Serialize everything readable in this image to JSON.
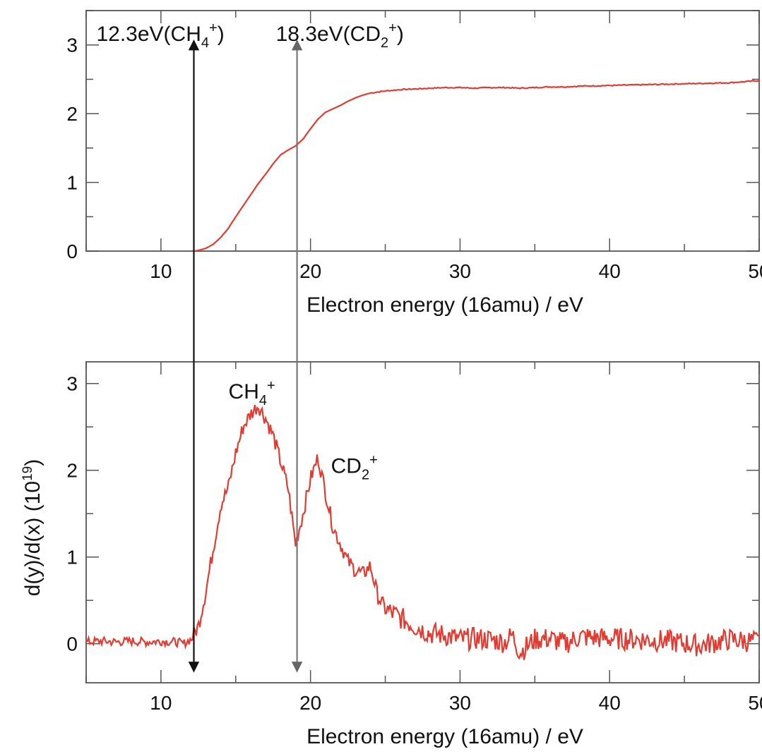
{
  "figure": {
    "colors": {
      "curve": "#e03c31",
      "axis": "#555555",
      "arrow_dark": "#111111",
      "arrow_gray": "#777777",
      "text": "#111111",
      "background": "#ffffff"
    }
  },
  "chart_data": [
    {
      "type": "line",
      "title": "",
      "xlabel": "Electron energy (16amu) / eV",
      "ylabel": "",
      "xlim": [
        5,
        50
      ],
      "ylim": [
        0,
        3.5
      ],
      "x_ticks": [
        10,
        20,
        30,
        40,
        50
      ],
      "x_tick_labels": [
        "10",
        "20",
        "30",
        "40",
        "50"
      ],
      "y_ticks": [
        0,
        1,
        2,
        3
      ],
      "y_tick_labels": [
        "0",
        "1",
        "2",
        "3"
      ],
      "grid": false,
      "series": [
        {
          "x": [
            12.2,
            12.5,
            13,
            13.5,
            14,
            14.5,
            15,
            15.5,
            16,
            16.5,
            17,
            17.5,
            18,
            18.5,
            19,
            19.5,
            20,
            20.5,
            21,
            21.5,
            22,
            22.5,
            23,
            23.5,
            24,
            25,
            26,
            27,
            28,
            29,
            30,
            31,
            32,
            33,
            34,
            35,
            36,
            37,
            38,
            40,
            42,
            44,
            46,
            48,
            50
          ],
          "y": [
            0,
            0.01,
            0.04,
            0.1,
            0.2,
            0.33,
            0.5,
            0.66,
            0.82,
            0.98,
            1.12,
            1.27,
            1.4,
            1.47,
            1.53,
            1.63,
            1.78,
            1.92,
            2.02,
            2.07,
            2.12,
            2.18,
            2.23,
            2.27,
            2.3,
            2.33,
            2.35,
            2.36,
            2.37,
            2.38,
            2.38,
            2.37,
            2.38,
            2.38,
            2.37,
            2.38,
            2.39,
            2.39,
            2.4,
            2.41,
            2.42,
            2.43,
            2.44,
            2.45,
            2.48
          ]
        }
      ],
      "annotations": [
        {
          "x": 12.2,
          "label_main": "12.3eV(CH",
          "label_sub": "4",
          "label_sup": "+",
          "label_end": ")"
        },
        {
          "x": 19.1,
          "label_main": "18.3eV(CD",
          "label_sub": "2",
          "label_sup": "+",
          "label_end": ")"
        }
      ]
    },
    {
      "type": "line",
      "title": "",
      "xlabel": "Electron energy (16amu) / eV",
      "ylabel": "d(y)/d(x) (10",
      "ylabel_sup": "19",
      "ylabel_end": ")",
      "xlim": [
        5,
        50
      ],
      "ylim": [
        -0.45,
        3.25
      ],
      "x_ticks": [
        10,
        20,
        30,
        40,
        50
      ],
      "x_tick_labels": [
        "10",
        "20",
        "30",
        "40",
        "50"
      ],
      "y_ticks": [
        0,
        1,
        2,
        3
      ],
      "y_tick_labels": [
        "0",
        "1",
        "2",
        "3"
      ],
      "grid": false,
      "series": [
        {
          "x": [
            5,
            6,
            7,
            8,
            9,
            10,
            11,
            11.5,
            12,
            12.5,
            13,
            13.5,
            14,
            14.5,
            15,
            15.5,
            16,
            16.5,
            17,
            17.5,
            18,
            18.5,
            19,
            19.5,
            20,
            20.5,
            21,
            21.5,
            22,
            22.5,
            23,
            23.5,
            24,
            24.5,
            25,
            26,
            27,
            28,
            29,
            30,
            31,
            32,
            33,
            33.5,
            34,
            35,
            36,
            37,
            38,
            40,
            42,
            44,
            46,
            48,
            50
          ],
          "y": [
            0.02,
            0.03,
            0.02,
            0.03,
            0.02,
            0.03,
            0.02,
            0.0,
            0.05,
            0.2,
            0.6,
            1.1,
            1.6,
            1.8,
            2.2,
            2.5,
            2.65,
            2.75,
            2.6,
            2.4,
            2.1,
            1.8,
            1.15,
            1.5,
            1.9,
            2.15,
            1.75,
            1.35,
            1.15,
            0.95,
            0.85,
            0.8,
            0.9,
            0.55,
            0.4,
            0.3,
            0.2,
            0.12,
            0.1,
            0.05,
            0.06,
            0.05,
            0.02,
            0.1,
            -0.1,
            0.05,
            0.06,
            0.0,
            0.08,
            0.06,
            0.05,
            0.03,
            -0.02,
            0.05,
            0.02
          ]
        }
      ],
      "annotations": [
        {
          "x": 16.5,
          "y": 2.85,
          "label_main": "CH",
          "label_sub": "4",
          "label_sup": "+"
        },
        {
          "x": 22.5,
          "y": 2.05,
          "label_main": "CD",
          "label_sub": "2",
          "label_sup": "+"
        }
      ]
    }
  ]
}
